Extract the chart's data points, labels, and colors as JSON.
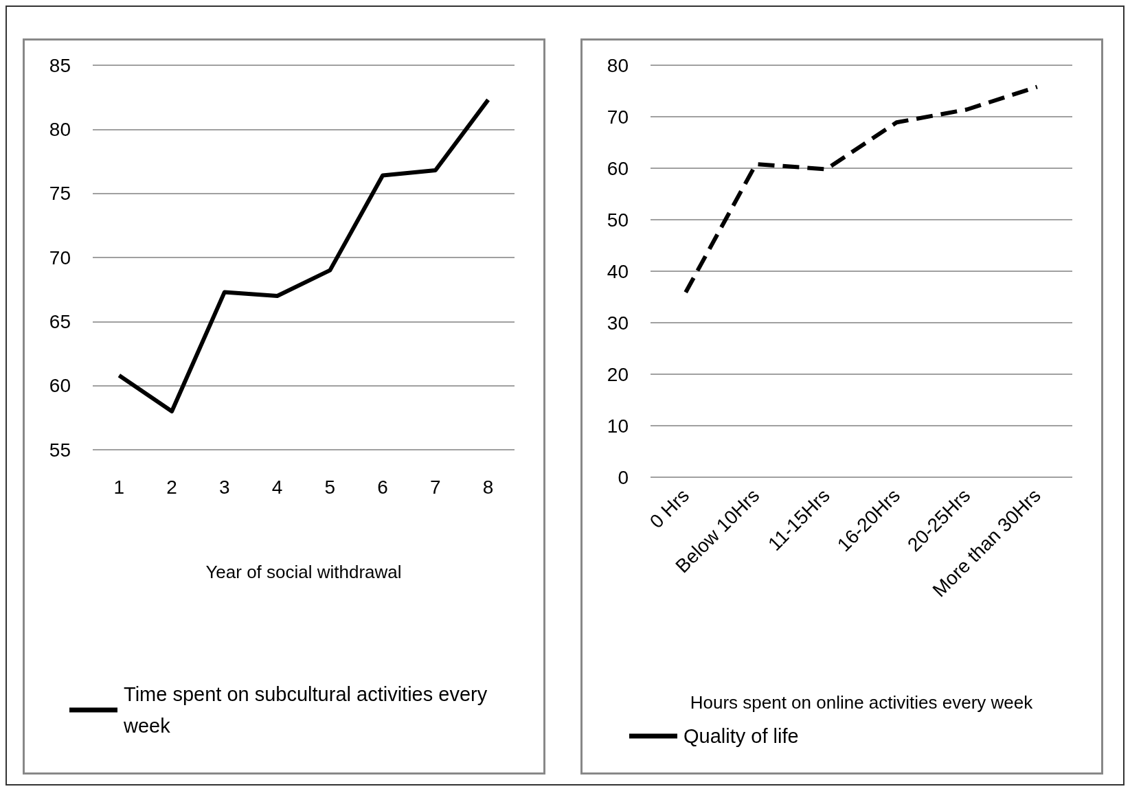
{
  "chart_data": [
    {
      "type": "line",
      "xlabel": "Year of social withdrawal",
      "categories": [
        "1",
        "2",
        "3",
        "4",
        "5",
        "6",
        "7",
        "8"
      ],
      "series": [
        {
          "name": "Time spent on subcultural activities every week",
          "color": "#000000",
          "values": [
            60.8,
            58.0,
            67.3,
            67.0,
            69.0,
            76.4,
            76.8,
            82.3
          ]
        }
      ],
      "ylim": [
        55,
        85
      ],
      "yticks": [
        55,
        60,
        65,
        70,
        75,
        80,
        85
      ],
      "grid": "y",
      "legend": "bottom",
      "marker": "none",
      "line_style": "solid"
    },
    {
      "type": "line",
      "xlabel": "Hours spent on online activities every week",
      "categories": [
        "0 Hrs",
        "Below 10Hrs",
        "11-15Hrs",
        "16-20Hrs",
        "20-25Hrs",
        "More than 30Hrs"
      ],
      "series": [
        {
          "name": "Quality of life",
          "color": "#000000",
          "values": [
            35.9,
            60.8,
            59.8,
            68.9,
            71.4,
            75.8
          ]
        }
      ],
      "ylim": [
        0,
        80
      ],
      "yticks": [
        0,
        10,
        20,
        30,
        40,
        50,
        60,
        70,
        80
      ],
      "grid": "y",
      "legend": "bottom",
      "marker": "none",
      "line_style": "dashed"
    }
  ]
}
